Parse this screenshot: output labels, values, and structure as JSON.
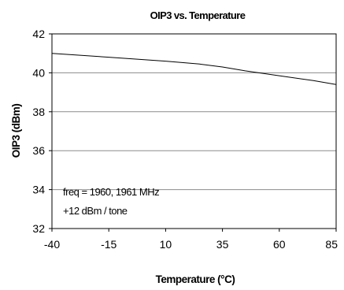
{
  "chart_data": {
    "type": "line",
    "title": "OIP3 vs. Temperature",
    "xlabel": "Temperature (°C)",
    "ylabel": "OIP3 (dBm)",
    "x_ticks": [
      -40,
      -15,
      10,
      35,
      60,
      85
    ],
    "y_ticks": [
      32,
      34,
      36,
      38,
      40,
      42
    ],
    "xlim": [
      -40,
      85
    ],
    "ylim": [
      32,
      42
    ],
    "grid": "horizontal",
    "annotations": [
      "freq = 1960, 1961 MHz",
      "+12 dBm / tone"
    ],
    "series": [
      {
        "x": [
          -40,
          -15,
          10,
          25,
          35,
          45,
          60,
          75,
          85
        ],
        "y": [
          41.0,
          40.8,
          40.6,
          40.45,
          40.3,
          40.1,
          39.85,
          39.6,
          39.4
        ]
      }
    ]
  }
}
